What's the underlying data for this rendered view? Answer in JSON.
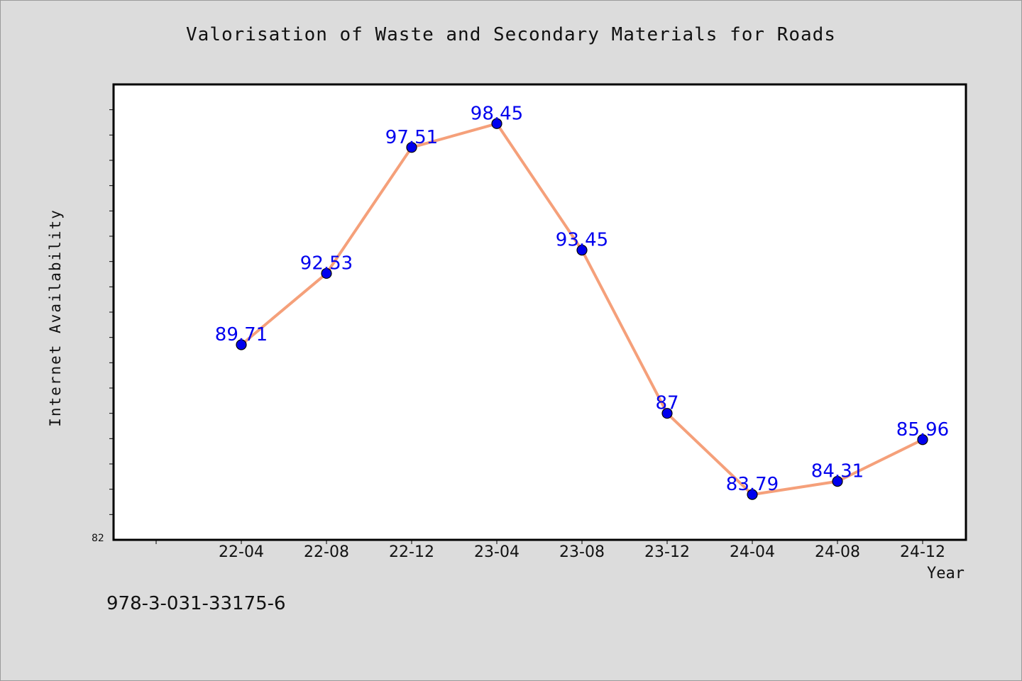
{
  "chart_data": {
    "type": "line",
    "title": "Valorisation of Waste and Secondary Materials for Roads",
    "xlabel": "Year",
    "ylabel": "Internet Availability",
    "categories": [
      "22-04",
      "22-08",
      "22-12",
      "23-04",
      "23-08",
      "23-12",
      "24-04",
      "24-08",
      "24-12"
    ],
    "series": [
      {
        "values": [
          89.71,
          92.53,
          97.51,
          98.45,
          93.45,
          87,
          83.79,
          84.31,
          85.96
        ],
        "labels": [
          "89.71",
          "92.53",
          "97.51",
          "98.45",
          "93.45",
          "87",
          "83.79",
          "84.31",
          "85.96"
        ]
      }
    ],
    "ylim": [
      82,
      100
    ],
    "y_tick_label": "82",
    "data_labels": true,
    "grid": false,
    "colors": {
      "line": "#f5a07a",
      "marker": "#0000ee",
      "label": "#0000ee",
      "background": "#dcdcdc",
      "plot_background": "#ffffff"
    }
  },
  "footer": "978-3-031-33175-6"
}
